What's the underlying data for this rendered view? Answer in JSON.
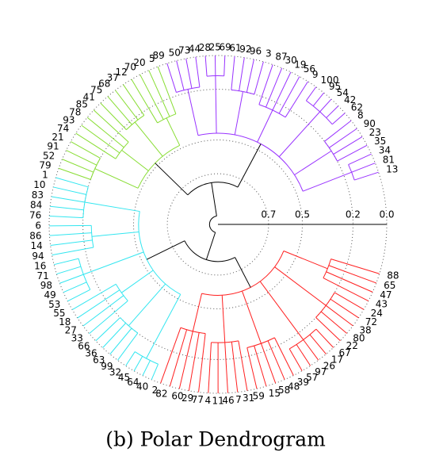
{
  "chart_data": {
    "type": "dendrogram",
    "caption": "(b) Polar Dendrogram",
    "leaves": [
      13,
      81,
      34,
      35,
      23,
      90,
      8,
      62,
      42,
      54,
      95,
      100,
      9,
      56,
      19,
      30,
      87,
      3,
      96,
      92,
      61,
      69,
      25,
      28,
      44,
      73,
      50,
      89,
      5,
      20,
      70,
      12,
      37,
      68,
      75,
      41,
      85,
      78,
      93,
      74,
      21,
      91,
      52,
      79,
      1,
      10,
      83,
      84,
      76,
      6,
      86,
      14,
      94,
      16,
      71,
      98,
      49,
      53,
      55,
      18,
      27,
      33,
      66,
      36,
      63,
      99,
      32,
      45,
      64,
      40,
      2,
      82,
      60,
      29,
      77,
      4,
      11,
      46,
      7,
      31,
      59,
      15,
      58,
      48,
      39,
      57,
      97,
      26,
      17,
      67,
      22,
      80,
      38,
      72,
      24,
      43,
      47,
      65,
      88
    ],
    "clusters": [
      {
        "color": "#9933ff",
        "height": 0.46,
        "groups": [
          {
            "size": 3,
            "height": 0.15
          },
          {
            "size": 4,
            "height": 0.2
          },
          {
            "size": 5,
            "height": 0.1
          },
          {
            "size": 5,
            "height": 0.25
          },
          {
            "size": 4,
            "height": 0.2
          },
          {
            "size": 3,
            "height": 0.12
          },
          {
            "size": 4,
            "height": 0.18
          }
        ]
      },
      {
        "color": "#88dd33",
        "height": 0.48,
        "groups": [
          {
            "size": 4,
            "height": 0.3
          },
          {
            "size": 4,
            "height": 0.22
          },
          {
            "size": 4,
            "height": 0.28
          },
          {
            "size": 4,
            "height": 0.2
          }
        ]
      },
      {
        "color": "#33e6f0",
        "height": 0.53,
        "groups": [
          {
            "size": 5,
            "height": 0.2
          },
          {
            "size": 4,
            "height": 0.25
          },
          {
            "size": 5,
            "height": 0.15
          },
          {
            "size": 4,
            "height": 0.3
          },
          {
            "size": 4,
            "height": 0.2
          },
          {
            "size": 4,
            "height": 0.1
          }
        ]
      },
      {
        "color": "#ff2020",
        "height": 0.58,
        "groups": [
          {
            "size": 5,
            "height": 0.35
          },
          {
            "size": 5,
            "height": 0.3
          },
          {
            "size": 5,
            "height": 0.25
          },
          {
            "size": 5,
            "height": 0.15
          },
          {
            "size": 5,
            "height": 0.2
          },
          {
            "size": 4,
            "height": 0.3
          }
        ]
      }
    ],
    "pair_heights": [
      0.75,
      0.78
    ],
    "root_height": 0.95,
    "rlim": [
      1,
      0
    ],
    "rticks": [
      0.7,
      0.5,
      0.2,
      {
        "value": 0,
        "label": "0.0"
      }
    ],
    "grid": true
  }
}
